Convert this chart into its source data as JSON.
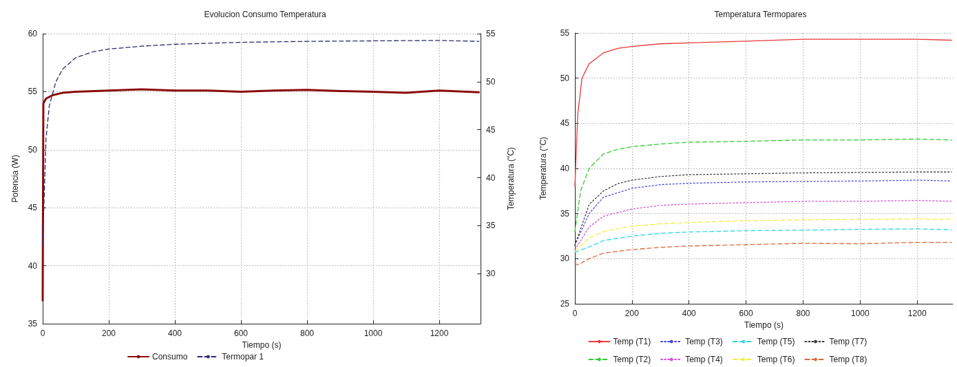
{
  "chart_data": [
    {
      "type": "line",
      "title": "Evolucion Consumo Temperatura",
      "xlabel": "Tiempo (s)",
      "ylabel": "Potencia (W)",
      "y2label": "Temperatura (\"C)",
      "xlim": [
        0,
        1325
      ],
      "xticks": [
        0,
        200,
        400,
        600,
        800,
        1000,
        1200
      ],
      "ylim": [
        35,
        60
      ],
      "yticks": [
        35,
        40,
        45,
        50,
        55,
        60
      ],
      "y2lim": [
        24.8,
        55
      ],
      "y2ticks": [
        30,
        35,
        40,
        45,
        50,
        55
      ],
      "grid": true,
      "legend": "bottom",
      "marker": "none",
      "series": [
        {
          "name": "Consumo",
          "color": "#8b0a0a",
          "line_style": "solid",
          "x": [
            0,
            2,
            10,
            30,
            60,
            100,
            200,
            300,
            400,
            500,
            600,
            700,
            800,
            900,
            1000,
            1100,
            1200,
            1320
          ],
          "values": [
            37,
            54,
            54.4,
            54.7,
            54.9,
            55,
            55.1,
            55.2,
            55.1,
            55.1,
            55,
            55.1,
            55.15,
            55.05,
            55,
            54.9,
            55.1,
            54.95
          ]
        },
        {
          "name": "Termopar 1",
          "color": "#2a2a6e",
          "line_style": "dashed",
          "axis": "y2",
          "x": [
            0,
            10,
            20,
            40,
            60,
            100,
            150,
            200,
            300,
            400,
            500,
            600,
            800,
            1000,
            1200,
            1320
          ],
          "values": [
            33,
            44,
            47.5,
            50,
            51.3,
            52.5,
            53.1,
            53.4,
            53.7,
            53.9,
            54,
            54.1,
            54.2,
            54.25,
            54.3,
            54.2
          ]
        }
      ]
    },
    {
      "type": "line",
      "title": "Temperatura Termopares",
      "xlabel": "Tiempo (s)",
      "ylabel": "Temperatura (\"C)",
      "xlim": [
        0,
        1325
      ],
      "xticks": [
        0,
        200,
        400,
        600,
        800,
        1000,
        1200
      ],
      "ylim": [
        25,
        55
      ],
      "yticks": [
        25,
        30,
        35,
        40,
        45,
        50,
        55
      ],
      "grid": true,
      "legend": "bottom",
      "marker": "none",
      "series": [
        {
          "name": "Temp (T1)",
          "color": "#e8383a",
          "line_style": "solid",
          "x": [
            0,
            10,
            25,
            50,
            100,
            150,
            200,
            300,
            400,
            600,
            800,
            1000,
            1200,
            1320
          ],
          "values": [
            38,
            46,
            50,
            51.6,
            52.8,
            53.3,
            53.5,
            53.8,
            53.9,
            54.1,
            54.3,
            54.3,
            54.3,
            54.2
          ]
        },
        {
          "name": "Temp (T2)",
          "color": "#2ecc2e",
          "line_style": "dashed",
          "x": [
            0,
            20,
            50,
            100,
            150,
            200,
            300,
            400,
            600,
            800,
            1000,
            1200,
            1320
          ],
          "values": [
            33,
            37.5,
            40,
            41.6,
            42.1,
            42.4,
            42.7,
            42.9,
            43,
            43.15,
            43.15,
            43.25,
            43.15
          ]
        },
        {
          "name": "Temp (T3)",
          "color": "#4848d8",
          "line_style": "dotted",
          "x": [
            0,
            50,
            100,
            200,
            300,
            400,
            600,
            800,
            1000,
            1200,
            1320
          ],
          "values": [
            31.5,
            35,
            36.8,
            37.8,
            38.2,
            38.35,
            38.5,
            38.55,
            38.6,
            38.7,
            38.6
          ]
        },
        {
          "name": "Temp (T4)",
          "color": "#d050d0",
          "line_style": "dotted",
          "x": [
            0,
            50,
            100,
            200,
            300,
            400,
            600,
            800,
            1000,
            1200,
            1320
          ],
          "values": [
            31,
            33.5,
            34.7,
            35.5,
            35.9,
            36.05,
            36.2,
            36.35,
            36.35,
            36.45,
            36.35
          ]
        },
        {
          "name": "Temp (T5)",
          "color": "#30d8e0",
          "line_style": "dashed",
          "x": [
            0,
            50,
            100,
            200,
            300,
            400,
            600,
            800,
            1000,
            1200,
            1320
          ],
          "values": [
            30.7,
            31.3,
            32,
            32.5,
            32.8,
            32.95,
            33.1,
            33.15,
            33.25,
            33.3,
            33.2
          ]
        },
        {
          "name": "Temp (T6)",
          "color": "#f0f040",
          "line_style": "dashed",
          "x": [
            0,
            50,
            100,
            200,
            300,
            400,
            600,
            800,
            1000,
            1200,
            1320
          ],
          "values": [
            30.8,
            32.3,
            33,
            33.6,
            33.85,
            34,
            34.2,
            34.3,
            34.35,
            34.4,
            34.35
          ]
        },
        {
          "name": "Temp (T7)",
          "color": "#404040",
          "line_style": "dotted",
          "x": [
            0,
            50,
            100,
            150,
            200,
            300,
            400,
            600,
            800,
            1000,
            1200,
            1320
          ],
          "values": [
            31.5,
            36,
            37.5,
            38.3,
            38.7,
            39.1,
            39.3,
            39.4,
            39.5,
            39.55,
            39.6,
            39.6
          ]
        },
        {
          "name": "Temp (T8)",
          "color": "#d8683a",
          "line_style": "dashed",
          "x": [
            0,
            10,
            50,
            100,
            200,
            300,
            400,
            600,
            800,
            1000,
            1200,
            1320
          ],
          "values": [
            29.5,
            29.3,
            30,
            30.6,
            31,
            31.25,
            31.4,
            31.55,
            31.7,
            31.65,
            31.8,
            31.8
          ]
        }
      ]
    }
  ]
}
